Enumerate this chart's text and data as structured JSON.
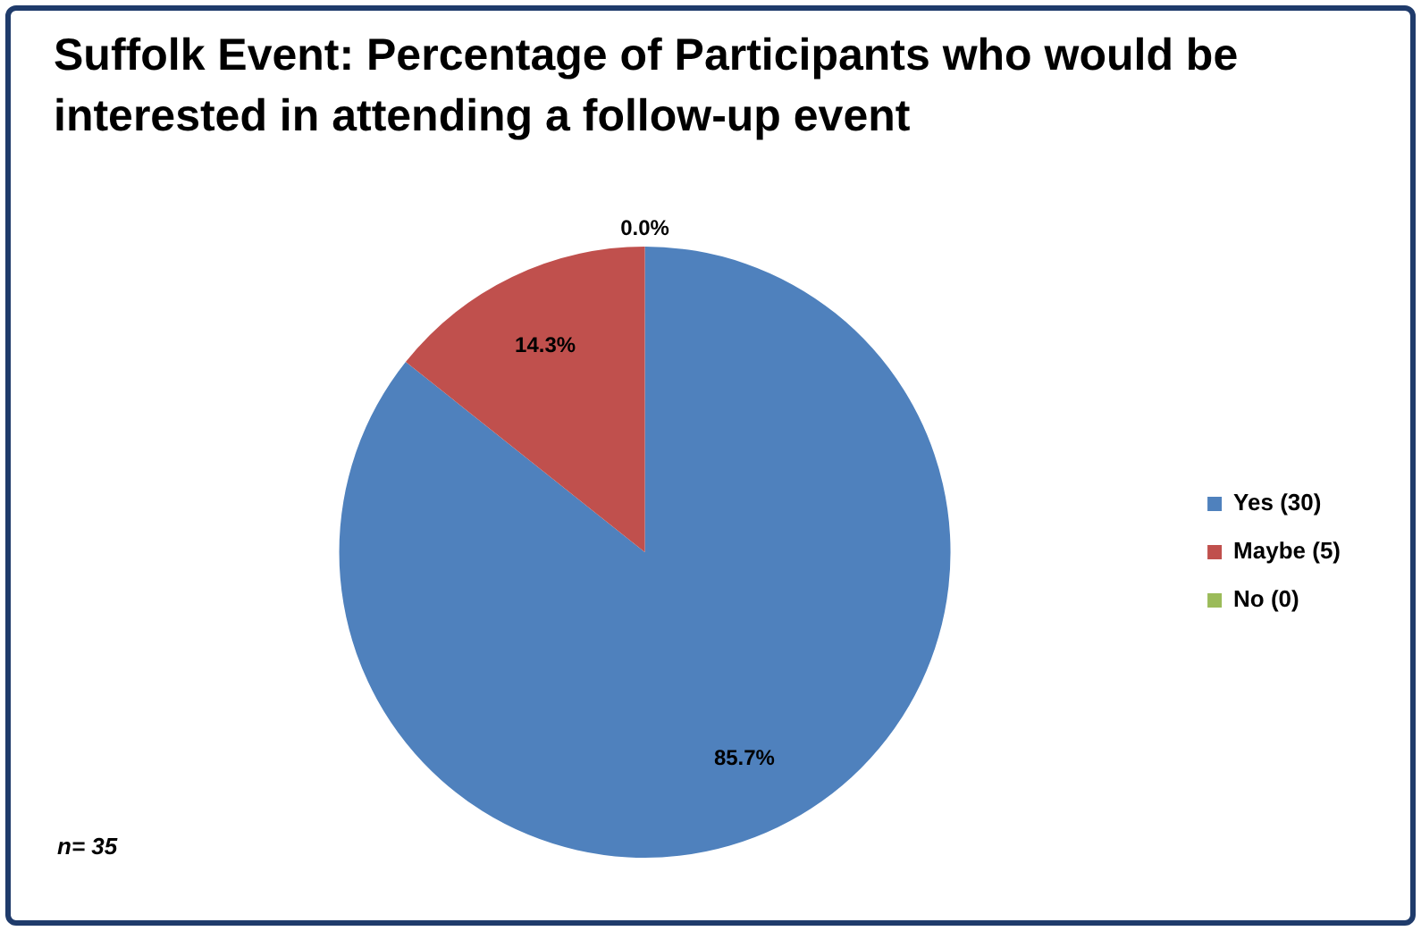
{
  "chart_data": {
    "type": "pie",
    "title": "Suffolk Event: Percentage of Participants who would be interested in attending a follow-up event",
    "categories": [
      "Yes (30)",
      "Maybe (5)",
      "No (0)"
    ],
    "values": [
      85.7,
      14.3,
      0.0
    ],
    "colors": [
      "#4f81bd",
      "#c0504d",
      "#9bbb59"
    ],
    "value_labels": [
      "85.7%",
      "14.3%",
      "0.0%"
    ],
    "legend": "right",
    "annotations": [
      "n= 35"
    ]
  }
}
